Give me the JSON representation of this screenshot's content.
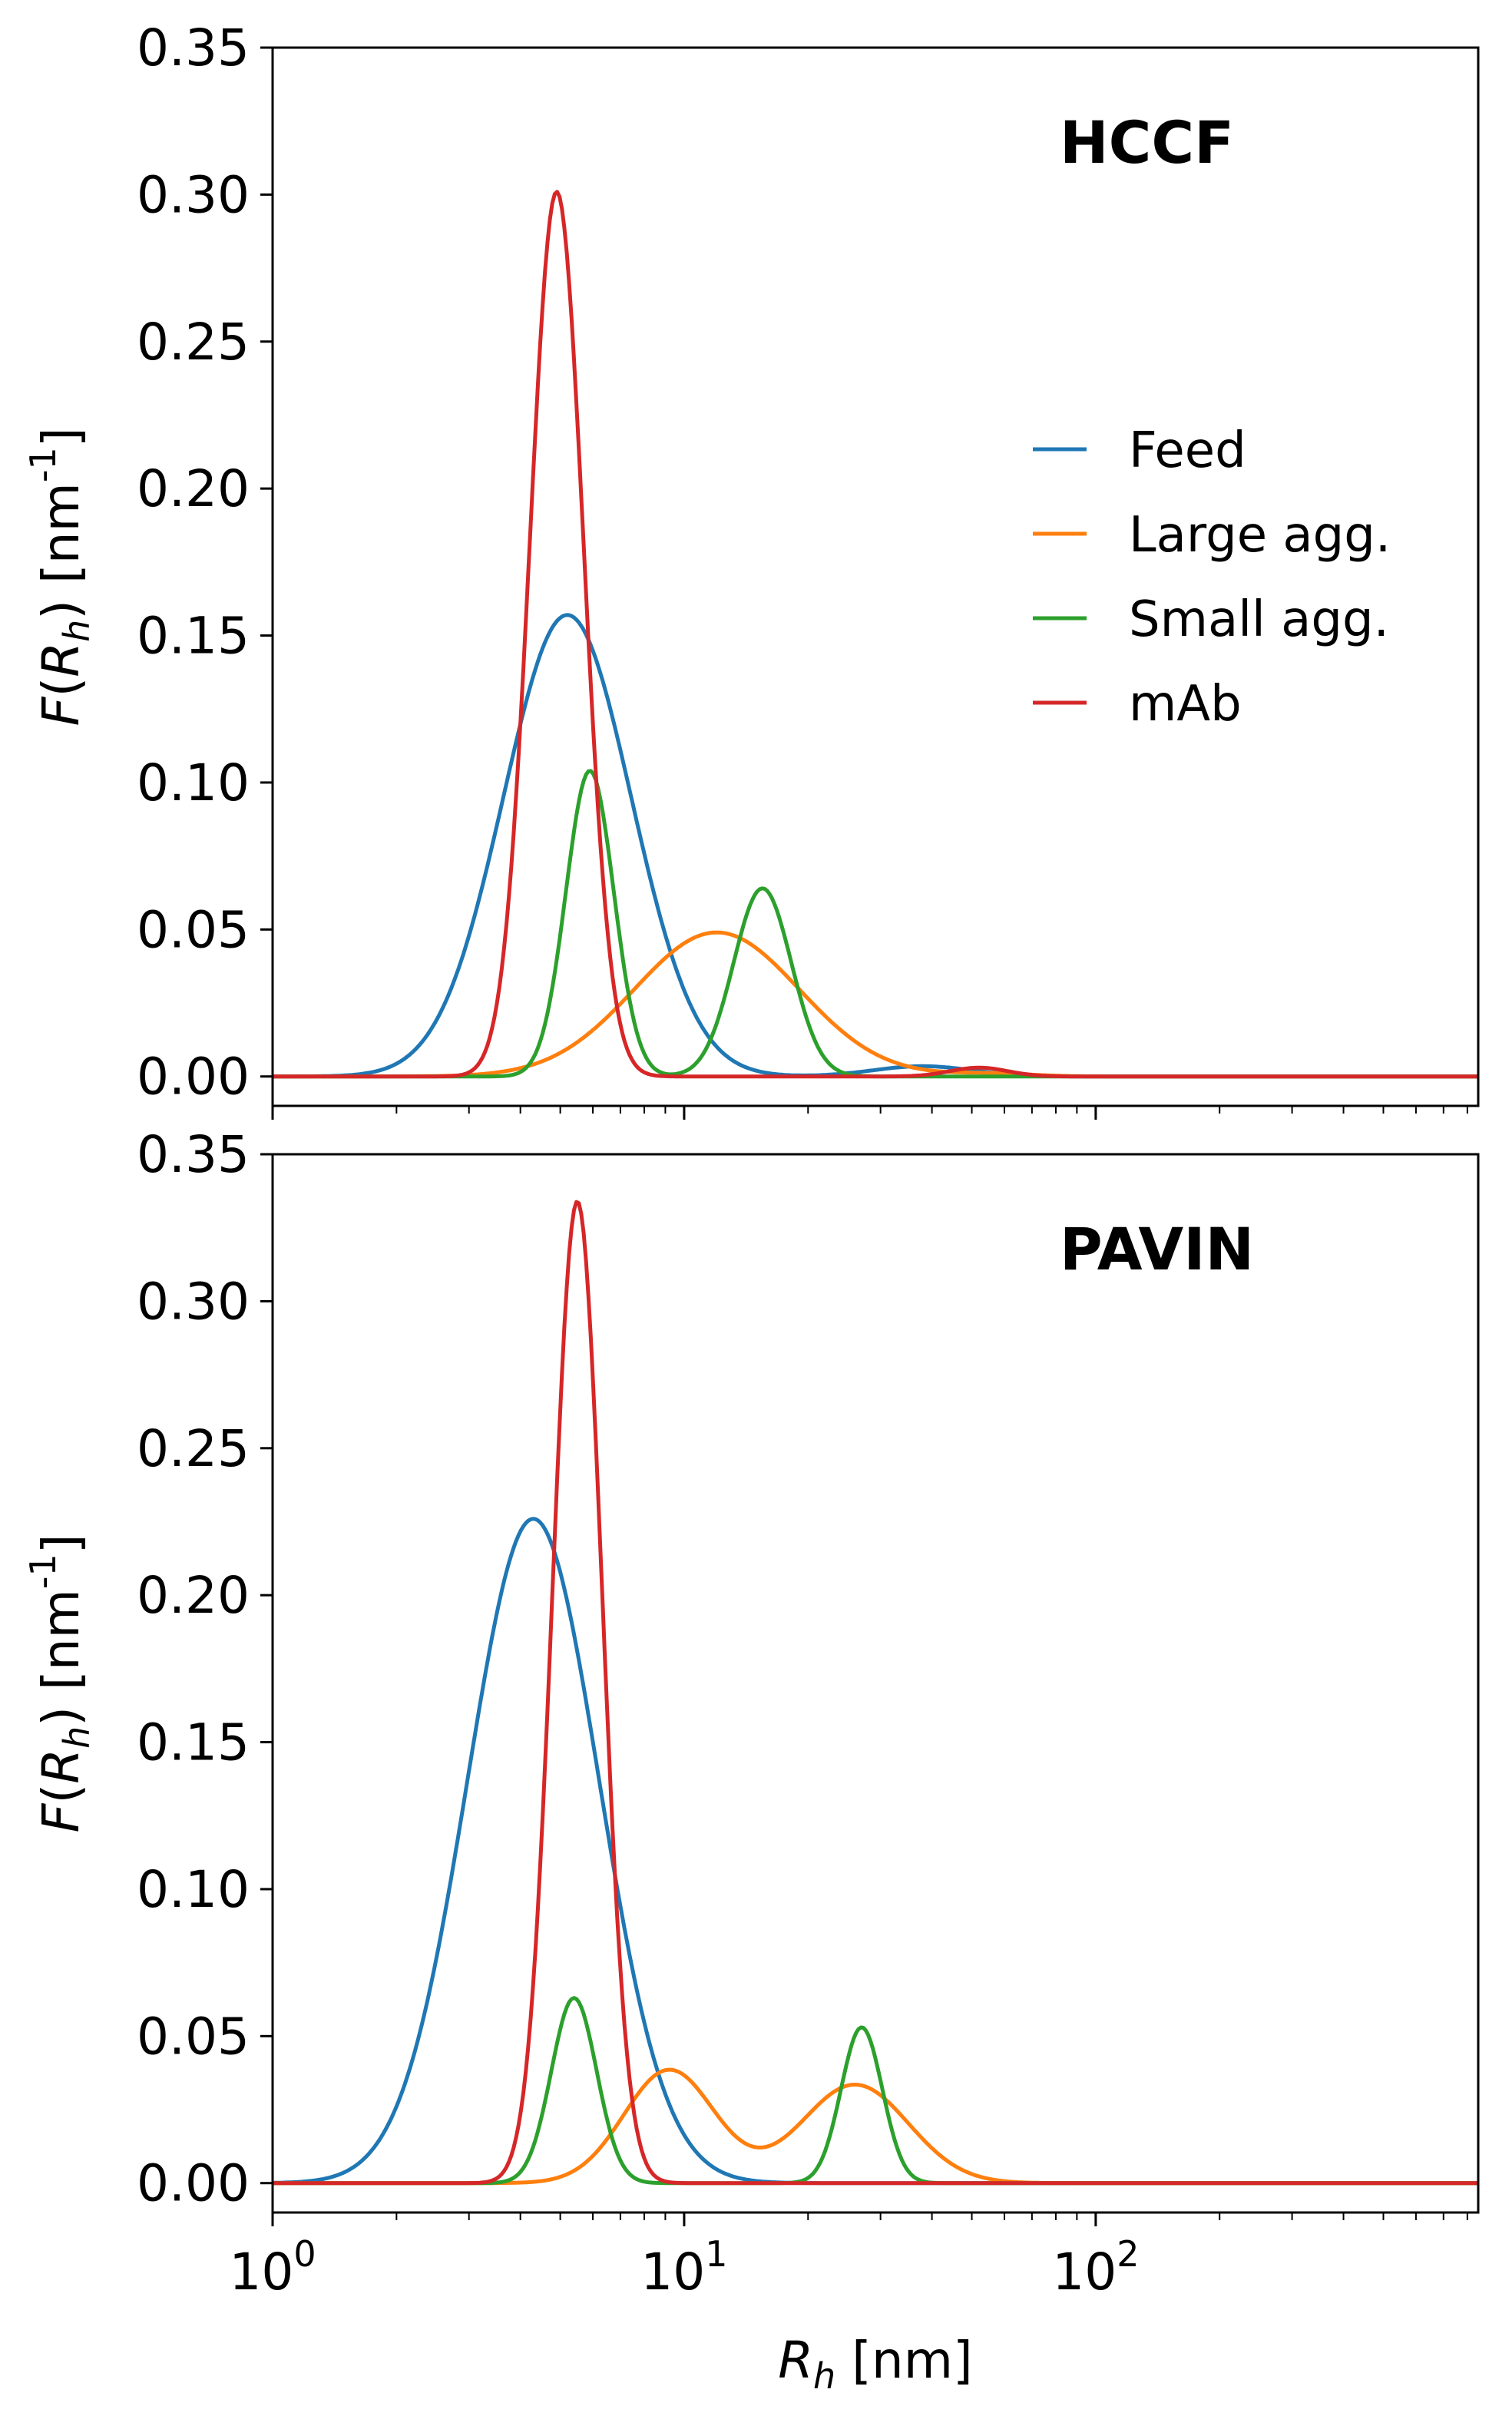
{
  "chart_data": [
    {
      "type": "line",
      "title": "HCCF",
      "ylabel": "F(R_h) [nm^-1]",
      "xlabel": "",
      "xscale": "log",
      "xlim": [
        1,
        850
      ],
      "ylim": [
        -0.01,
        0.35
      ],
      "xticks": [
        "10^0",
        "10^1",
        "10^2"
      ],
      "yticks": [
        "0.00",
        "0.05",
        "0.10",
        "0.15",
        "0.20",
        "0.25",
        "0.30",
        "0.35"
      ],
      "legend": {
        "placement": "right",
        "entries": [
          "Feed",
          "Large agg.",
          "Small agg.",
          "mAb"
        ]
      },
      "grid": false,
      "series": [
        {
          "name": "Feed",
          "color": "#1f77b4",
          "components": [
            {
              "peak_x": 5.2,
              "peak_y": 0.157,
              "log10_sigma": 0.155
            },
            {
              "peak_x": 38,
              "peak_y": 0.0035,
              "log10_sigma": 0.12
            }
          ]
        },
        {
          "name": "Large agg.",
          "color": "#ff7f0e",
          "components": [
            {
              "peak_x": 12,
              "peak_y": 0.049,
              "log10_sigma": 0.2
            },
            {
              "peak_x": 55,
              "peak_y": 0.001,
              "log10_sigma": 0.1
            }
          ]
        },
        {
          "name": "Small agg.",
          "color": "#2ca02c",
          "components": [
            {
              "peak_x": 5.9,
              "peak_y": 0.104,
              "log10_sigma": 0.058
            },
            {
              "peak_x": 15.5,
              "peak_y": 0.064,
              "log10_sigma": 0.07
            }
          ]
        },
        {
          "name": "mAb",
          "color": "#d62728",
          "components": [
            {
              "peak_x": 4.9,
              "peak_y": 0.301,
              "log10_sigma": 0.065
            },
            {
              "peak_x": 52,
              "peak_y": 0.003,
              "log10_sigma": 0.07
            }
          ]
        }
      ]
    },
    {
      "type": "line",
      "title": "PAVIN",
      "ylabel": "F(R_h) [nm^-1]",
      "xlabel": "R_h [nm]",
      "xscale": "log",
      "xlim": [
        1,
        850
      ],
      "ylim": [
        -0.01,
        0.35
      ],
      "xticks": [
        "10^0",
        "10^1",
        "10^2"
      ],
      "yticks": [
        "0.00",
        "0.05",
        "0.10",
        "0.15",
        "0.20",
        "0.25",
        "0.30",
        "0.35"
      ],
      "grid": false,
      "series": [
        {
          "name": "Feed",
          "color": "#1f77b4",
          "components": [
            {
              "peak_x": 4.3,
              "peak_y": 0.226,
              "log10_sigma": 0.16
            }
          ]
        },
        {
          "name": "Large agg.",
          "color": "#ff7f0e",
          "components": [
            {
              "peak_x": 9.2,
              "peak_y": 0.0385,
              "log10_sigma": 0.11
            },
            {
              "peak_x": 26,
              "peak_y": 0.0335,
              "log10_sigma": 0.13
            }
          ]
        },
        {
          "name": "Small agg.",
          "color": "#2ca02c",
          "components": [
            {
              "peak_x": 5.4,
              "peak_y": 0.063,
              "log10_sigma": 0.055
            },
            {
              "peak_x": 27,
              "peak_y": 0.053,
              "log10_sigma": 0.05
            }
          ]
        },
        {
          "name": "mAb",
          "color": "#d62728",
          "components": [
            {
              "peak_x": 5.5,
              "peak_y": 0.334,
              "log10_sigma": 0.06
            }
          ]
        }
      ]
    }
  ]
}
